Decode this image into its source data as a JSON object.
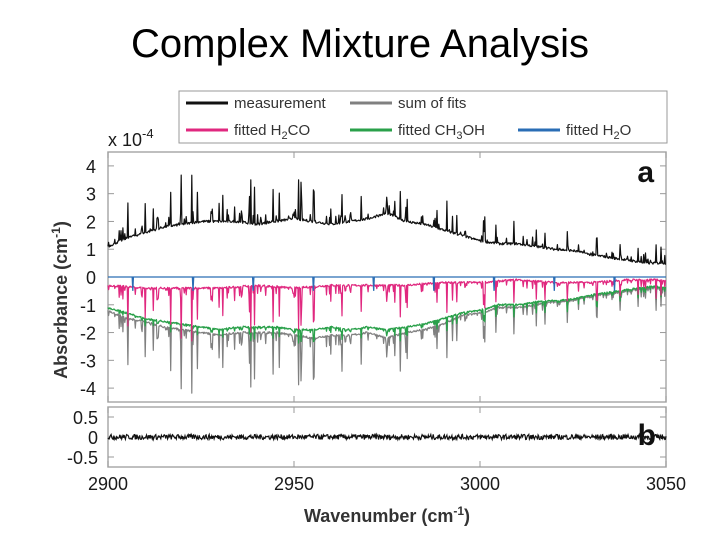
{
  "slide": {
    "title": "Complex Mixture Analysis"
  },
  "colors": {
    "measurement": "#111111",
    "sum_of_fits": "#808080",
    "fitted_h2co": "#e0287f",
    "fitted_ch3oh": "#2aa04a",
    "fitted_h2o": "#2a6db5"
  },
  "chart_data": [
    {
      "type": "line",
      "panel": "a",
      "panel_letter": "a",
      "scale_label": "x 10",
      "scale_exp": "-4",
      "ylabel": "Absorbance (cm",
      "ylabel_sup": "-1",
      "ylabel_end": ")",
      "xlim": [
        2900,
        3050
      ],
      "ylim": [
        -4.5,
        4.5
      ],
      "yticks": [
        {
          "v": 4,
          "label": "4"
        },
        {
          "v": 3,
          "label": "3"
        },
        {
          "v": 2,
          "label": "2"
        },
        {
          "v": 1,
          "label": "1"
        },
        {
          "v": 0,
          "label": "0"
        },
        {
          "v": -1,
          "label": "-1"
        },
        {
          "v": -2,
          "label": "-2"
        },
        {
          "v": -3,
          "label": "-3"
        },
        {
          "v": -4,
          "label": "-4"
        }
      ],
      "legend": [
        {
          "key": "measurement",
          "label": "measurement",
          "sub": ""
        },
        {
          "key": "sum_of_fits",
          "label": "sum of fits",
          "sub": ""
        },
        {
          "key": "fitted_h2co",
          "label": "fitted H",
          "sub": "2",
          "tail": "CO"
        },
        {
          "key": "fitted_ch3oh",
          "label": "fitted CH",
          "sub": "3",
          "tail": "OH"
        },
        {
          "key": "fitted_h2o",
          "label": "fitted H",
          "sub": "2",
          "tail": "O"
        }
      ],
      "series": [
        {
          "key": "measurement",
          "x": [
            2900,
            2905,
            2910,
            2915,
            2920,
            2925,
            2930,
            2935,
            2940,
            2945,
            2950,
            2955,
            2960,
            2965,
            2970,
            2975,
            2980,
            2985,
            2990,
            2995,
            3000,
            3005,
            3010,
            3015,
            3020,
            3025,
            3030,
            3035,
            3040,
            3045,
            3050
          ],
          "y": [
            1.1,
            1.4,
            1.6,
            1.8,
            1.9,
            2.0,
            2.0,
            2.0,
            1.9,
            2.0,
            2.1,
            2.0,
            1.9,
            2.0,
            2.1,
            2.3,
            2.0,
            1.9,
            1.7,
            1.5,
            1.3,
            1.2,
            1.2,
            1.1,
            1.0,
            0.95,
            0.8,
            0.7,
            0.6,
            0.5,
            0.5
          ]
        },
        {
          "key": "sum_of_fits",
          "x": [
            2900,
            2905,
            2910,
            2915,
            2920,
            2925,
            2930,
            2935,
            2940,
            2945,
            2950,
            2955,
            2960,
            2965,
            2970,
            2975,
            2980,
            2985,
            2990,
            2995,
            3000,
            3005,
            3010,
            3015,
            3020,
            3025,
            3030,
            3035,
            3040,
            3045,
            3050
          ],
          "y": [
            -1.2,
            -1.5,
            -1.6,
            -1.8,
            -1.9,
            -2.0,
            -2.1,
            -2.0,
            -2.0,
            -2.0,
            -2.1,
            -2.2,
            -2.1,
            -2.1,
            -2.0,
            -2.2,
            -2.0,
            -1.9,
            -1.7,
            -1.4,
            -1.3,
            -1.1,
            -1.1,
            -1.0,
            -0.9,
            -0.85,
            -0.7,
            -0.6,
            -0.5,
            -0.4,
            -0.4
          ]
        },
        {
          "key": "fitted_h2co",
          "x": [
            2900,
            2910,
            2920,
            2930,
            2940,
            2950,
            2960,
            2970,
            2980,
            2990,
            3000,
            3010,
            3020,
            3030,
            3040,
            3050
          ],
          "y": [
            -0.3,
            -0.4,
            -0.4,
            -0.4,
            -0.3,
            -0.4,
            -0.3,
            -0.3,
            -0.3,
            -0.2,
            -0.2,
            -0.1,
            -0.2,
            -0.2,
            -0.1,
            -0.1
          ]
        },
        {
          "key": "fitted_ch3oh",
          "x": [
            2900,
            2905,
            2910,
            2915,
            2920,
            2925,
            2930,
            2935,
            2940,
            2945,
            2950,
            2955,
            2960,
            2965,
            2970,
            2975,
            2980,
            2985,
            2990,
            2995,
            3000,
            3005,
            3010,
            3015,
            3020,
            3025,
            3030,
            3035,
            3040,
            3045,
            3050
          ],
          "y": [
            -1.1,
            -1.3,
            -1.5,
            -1.6,
            -1.7,
            -1.8,
            -1.9,
            -1.8,
            -1.8,
            -1.8,
            -1.9,
            -1.9,
            -1.8,
            -1.9,
            -1.8,
            -1.9,
            -1.8,
            -1.7,
            -1.5,
            -1.3,
            -1.2,
            -1.0,
            -1.0,
            -0.9,
            -0.85,
            -0.8,
            -0.65,
            -0.55,
            -0.45,
            -0.35,
            -0.35
          ]
        },
        {
          "key": "fitted_h2o",
          "x": [
            2900,
            2950,
            3000,
            3050
          ],
          "y": [
            0.0,
            0.0,
            0.0,
            0.0
          ]
        }
      ]
    },
    {
      "type": "line",
      "panel": "b",
      "panel_letter": "b",
      "xlabel": "Wavenumber (cm",
      "xlabel_sup": "-1",
      "xlabel_end": ")",
      "xlim": [
        2900,
        3050
      ],
      "ylim": [
        -0.75,
        0.75
      ],
      "xticks": [
        {
          "v": 2900,
          "label": "2900"
        },
        {
          "v": 2950,
          "label": "2950"
        },
        {
          "v": 3000,
          "label": "3000"
        },
        {
          "v": 3050,
          "label": "3050"
        }
      ],
      "yticks": [
        {
          "v": 0.5,
          "label": "0.5"
        },
        {
          "v": 0,
          "label": "0"
        },
        {
          "v": -0.5,
          "label": "-0.5"
        }
      ],
      "series": [
        {
          "key": "measurement",
          "x": [
            2900,
            2925,
            2950,
            2975,
            3000,
            3025,
            3050
          ],
          "y": [
            0.0,
            0.0,
            0.0,
            0.0,
            0.0,
            0.0,
            0.0
          ]
        }
      ]
    }
  ]
}
